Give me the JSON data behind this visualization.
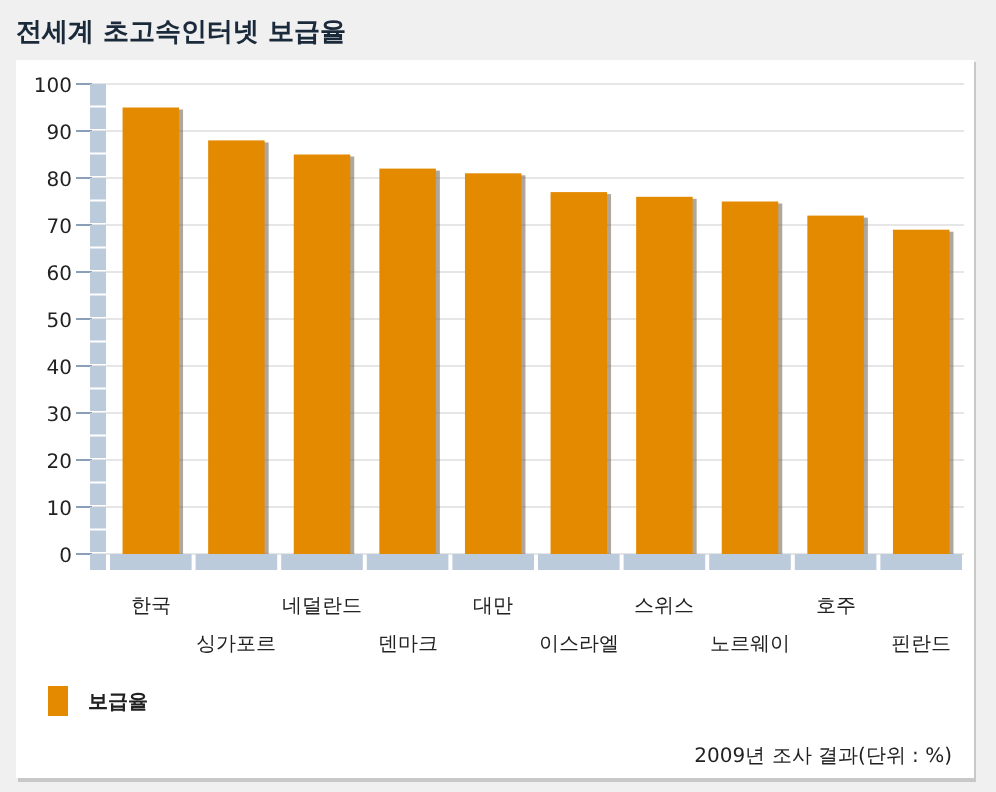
{
  "chart_data": {
    "type": "bar",
    "title": "전세계 초고속인터넷 보급율",
    "categories": [
      "한국",
      "싱가포르",
      "네덜란드",
      "덴마크",
      "대만",
      "이스라엘",
      "스위스",
      "노르웨이",
      "호주",
      "핀란드"
    ],
    "series": [
      {
        "name": "보급율",
        "color": "#e38a00",
        "values": [
          95,
          88,
          85,
          82,
          81,
          77,
          76,
          75,
          72,
          69
        ]
      }
    ],
    "ylim": [
      0,
      100
    ],
    "yticks": [
      0,
      10,
      20,
      30,
      40,
      50,
      60,
      70,
      80,
      90,
      100
    ],
    "grid": "y",
    "legend": "bottom left",
    "annotations": [
      "2009년 조사 결과(단위 : %)"
    ]
  }
}
